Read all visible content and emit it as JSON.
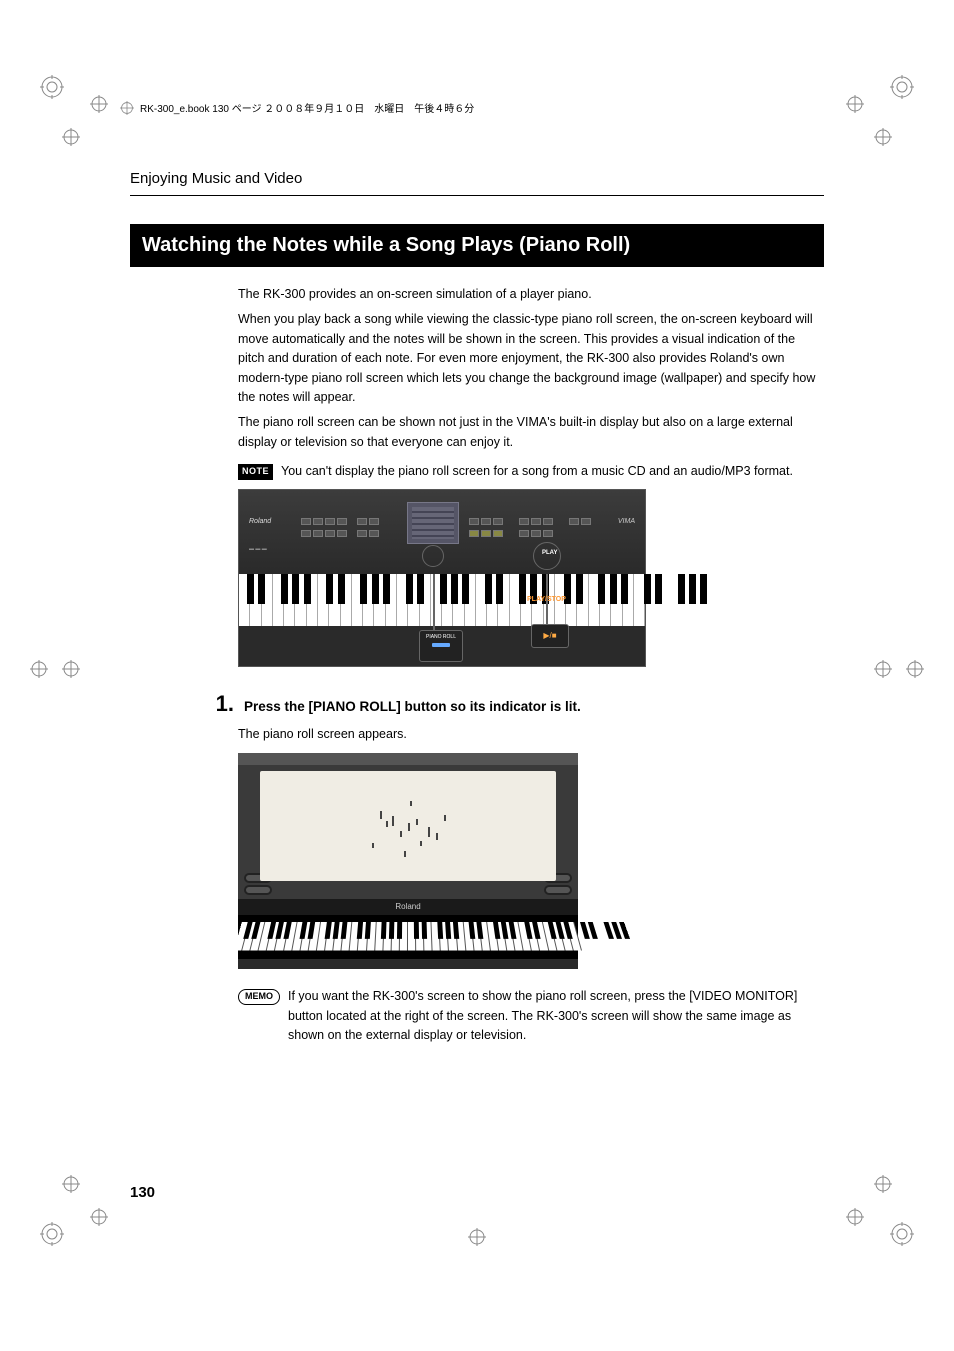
{
  "bookHeader": "RK-300_e.book  130 ページ  ２００８年９月１０日　水曜日　午後４時６分",
  "sectionHeader": "Enjoying Music and Video",
  "titleBar": "Watching the Notes while a Song Plays (Piano Roll)",
  "intro1": "The RK-300 provides an on-screen simulation of a player piano.",
  "intro2": "When you play back a song while viewing the classic-type piano roll screen, the on-screen keyboard will move automatically and the notes will be shown in the screen. This provides a visual indication of the pitch and duration of each note. For even more enjoyment, the RK-300 also provides Roland's own modern-type piano roll screen which lets you change the background image (wallpaper) and specify how the notes will appear.",
  "intro3": "The piano roll screen can be shown not just in the VIMA's built-in display but also on a large external display or television so that everyone can enjoy it.",
  "noteBadge": "NOTE",
  "noteText": "You can't display the piano roll screen for a song from a music CD and an audio/MP3 format.",
  "keyboardBrand": "Roland",
  "keyboardVima": "VIMA",
  "calloutPianoRoll": "PIANO ROLL",
  "calloutPlay": "PLAY",
  "calloutPlayStop": "PLAY/STOP",
  "stepNum": "1.",
  "stepText": "Press the [PIANO ROLL] button so its indicator is lit.",
  "stepBody": "The piano roll screen appears.",
  "prLogoBar": "Roland",
  "memoBadge": "MEMO",
  "memoText": "If you want the RK-300's screen to show the piano roll screen, press the [VIDEO MONITOR] button located at the right of the screen. The RK-300's screen will show the same image as shown on the external display or television.",
  "pageNum": "130",
  "colors": {
    "titleBg": "#000000",
    "titleFg": "#ffffff",
    "calloutOrange": "#ff9933",
    "panelDark": "#2a2a2a",
    "rollPaper": "#f0ede4"
  }
}
